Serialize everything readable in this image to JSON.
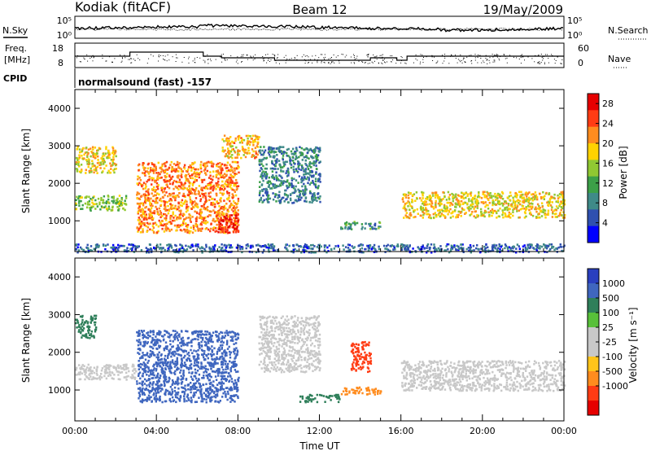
{
  "header": {
    "station": "Kodiak (fitACF)",
    "beam": "Beam 12",
    "date": "19/May/2009"
  },
  "nsky_panel": {
    "left_label": "N.Sky",
    "tick_top": "10^5",
    "tick_bottom": "10^0",
    "right_label": "N.Search"
  },
  "freq_panel": {
    "left_label_line1": "Freq.",
    "left_label_line2": "[MHz]",
    "tick_top": "18",
    "tick_bottom": "8",
    "right_tick_top": "60",
    "right_tick_bottom": "0",
    "right_label": "Nave"
  },
  "cpid": {
    "label": "CPID",
    "mode_text": "normalsound (fast) -157"
  },
  "colors": {
    "power_scale": [
      "#0000ff",
      "#2f50b0",
      "#3f8a88",
      "#3ca048",
      "#90c832",
      "#ffd200",
      "#ff8c1e",
      "#ff3c14",
      "#e60000"
    ],
    "velocity_scale": [
      "#2a3fbf",
      "#3f66bf",
      "#2f7f5a",
      "#58c03a",
      "#c8c8c8",
      "#c8c8c8",
      "#ffc41a",
      "#ff8c1e",
      "#ff3c14",
      "#e60000"
    ]
  },
  "chart_data": [
    {
      "type": "heatmap",
      "title": "",
      "quantity": "Power",
      "xlabel": "",
      "ylabel": "Slant Range [km]",
      "xlim": [
        0,
        24
      ],
      "ylim": [
        180,
        4500
      ],
      "y_ticks": [
        "1000",
        "2000",
        "3000",
        "4000"
      ],
      "colorbar": {
        "label": "Power [dB]",
        "ticks": [
          "4",
          "8",
          "12",
          "16",
          "20",
          "24",
          "28"
        ],
        "range": [
          0,
          30
        ]
      },
      "features": [
        {
          "x": [
            0,
            2.5
          ],
          "y": [
            1300,
            1700
          ],
          "value": 14
        },
        {
          "x": [
            0,
            2
          ],
          "y": [
            2300,
            3000
          ],
          "value": 18
        },
        {
          "x": [
            3,
            8
          ],
          "y": [
            700,
            2600
          ],
          "value": 22
        },
        {
          "x": [
            7,
            8
          ],
          "y": [
            700,
            1200
          ],
          "value": 28
        },
        {
          "x": [
            7.2,
            9
          ],
          "y": [
            2700,
            3300
          ],
          "value": 20
        },
        {
          "x": [
            9,
            12
          ],
          "y": [
            1500,
            3000
          ],
          "value": 8
        },
        {
          "x": [
            13,
            15
          ],
          "y": [
            800,
            1000
          ],
          "value": 10
        },
        {
          "x": [
            16,
            24
          ],
          "y": [
            1100,
            1800
          ],
          "value": 18
        },
        {
          "x": [
            0,
            24
          ],
          "y": [
            180,
            400
          ],
          "value": 6
        }
      ]
    },
    {
      "type": "heatmap",
      "title": "",
      "quantity": "Velocity",
      "xlabel": "Time UT",
      "ylabel": "Slant Range [km]",
      "xlim": [
        0,
        24
      ],
      "ylim": [
        180,
        4500
      ],
      "x_ticks": [
        "00:00",
        "04:00",
        "08:00",
        "12:00",
        "16:00",
        "20:00",
        "00:00"
      ],
      "y_ticks": [
        "1000",
        "2000",
        "3000",
        "4000"
      ],
      "colorbar": {
        "label": "Velocity [m s^-1]",
        "ticks": [
          "1000",
          "500",
          "100",
          "25",
          "-25",
          "-100",
          "-500",
          "-1000"
        ]
      },
      "features": [
        {
          "x": [
            0,
            1
          ],
          "y": [
            2400,
            3000
          ],
          "value": 100
        },
        {
          "x": [
            0,
            3
          ],
          "y": [
            1300,
            1700
          ],
          "value": 0
        },
        {
          "x": [
            3,
            8
          ],
          "y": [
            700,
            2600
          ],
          "value": 500
        },
        {
          "x": [
            9,
            12
          ],
          "y": [
            1500,
            3000
          ],
          "value": 0
        },
        {
          "x": [
            11,
            13
          ],
          "y": [
            700,
            900
          ],
          "value": 100
        },
        {
          "x": [
            13,
            15
          ],
          "y": [
            900,
            1100
          ],
          "value": -100
        },
        {
          "x": [
            13.5,
            14.5
          ],
          "y": [
            1500,
            2300
          ],
          "value": -500
        },
        {
          "x": [
            16,
            24
          ],
          "y": [
            1000,
            1800
          ],
          "value": 0
        }
      ]
    }
  ]
}
